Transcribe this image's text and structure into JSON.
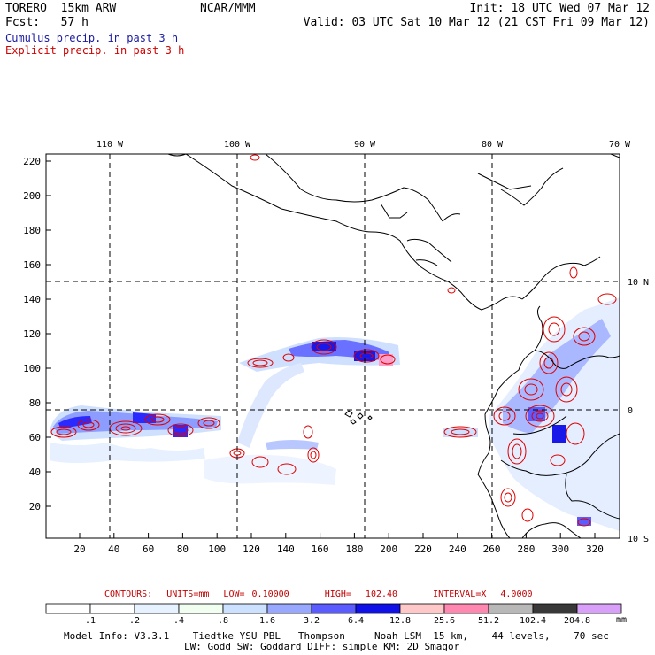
{
  "header": {
    "model": "TORERO  15km ARW",
    "org": "NCAR/MMM",
    "init": "Init: 18 UTC Wed 07 Mar 12",
    "fcst": "Fcst:   57 h",
    "valid": "Valid: 03 UTC Sat 10 Mar 12 (21 CST Fri 09 Mar 12)"
  },
  "legend": {
    "cumulus": "Cumulus precip. in past 3 h",
    "explicit": "Explicit precip. in past 3 h",
    "cumulus_color": "#1a1aa0",
    "explicit_color": "#d00000"
  },
  "axes": {
    "lon_labels": [
      "110 W",
      "100 W",
      "90 W",
      "80 W",
      "70 W"
    ],
    "lat_labels": [
      "10 N",
      "0",
      "10 S"
    ],
    "y_ticks": [
      "220",
      "200",
      "180",
      "160",
      "140",
      "120",
      "100",
      "80",
      "60",
      "40",
      "20"
    ],
    "x_ticks": [
      "20",
      "40",
      "60",
      "80",
      "100",
      "120",
      "140",
      "160",
      "180",
      "200",
      "220",
      "240",
      "260",
      "280",
      "300",
      "320"
    ]
  },
  "contours_info": "CONTOURS:  UNITS=mm  LOW= 0.10000     HIGH=  102.40     INTERVAL=X  4.0000",
  "colorbar": {
    "labels": [
      ".1",
      ".2",
      ".4",
      ".8",
      "1.6",
      "3.2",
      "6.4",
      "12.8",
      "25.6",
      "51.2",
      "102.4",
      "204.8"
    ],
    "units": "mm",
    "colors": [
      "#ffffff",
      "#ffffff",
      "#e6f2ff",
      "#f0fff0",
      "#cce0ff",
      "#99a8ff",
      "#5a5cff",
      "#1010e8",
      "#ffc8c8",
      "#ff88b0",
      "#b8b8b8",
      "#383838",
      "#d8a0f8"
    ]
  },
  "model_info": {
    "line1": "Model Info: V3.3.1    Tiedtke YSU PBL   Thompson     Noah LSM  15 km,    44 levels,    70 sec",
    "line2": "LW: Godd SW: Goddard DIFF: simple KM: 2D Smagor"
  }
}
